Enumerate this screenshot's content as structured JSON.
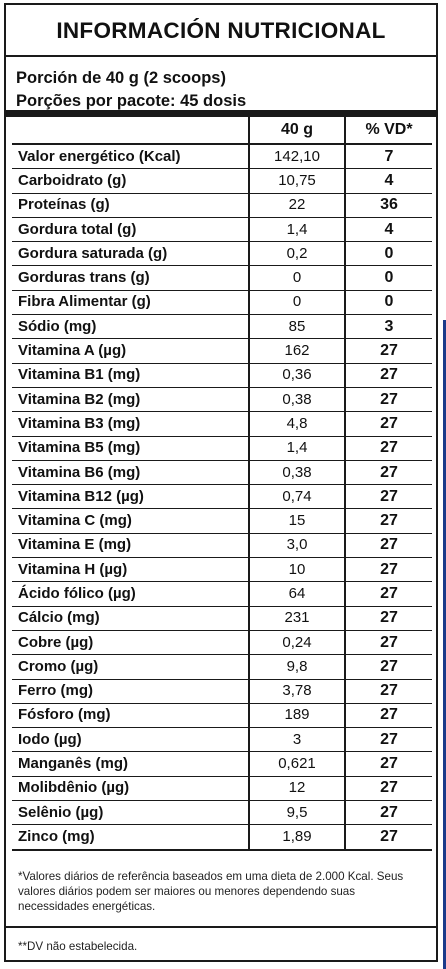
{
  "title": "INFORMACIÓN NUTRICIONAL",
  "portion": {
    "line1": "Porción de 40 g (2 scoops)",
    "line2": "Porções por pacote: 45 dosis"
  },
  "table": {
    "col_qty": "40 g",
    "col_vd": "% VD*",
    "rows": [
      {
        "name": "Valor energético (Kcal)",
        "qty": "142,10",
        "vd": "7"
      },
      {
        "name": "Carboidrato (g)",
        "qty": "10,75",
        "vd": "4"
      },
      {
        "name": "Proteínas (g)",
        "qty": "22",
        "vd": "36"
      },
      {
        "name": "Gordura total (g)",
        "qty": "1,4",
        "vd": "4"
      },
      {
        "name": "Gordura saturada (g)",
        "qty": "0,2",
        "vd": "0"
      },
      {
        "name": "Gorduras trans (g)",
        "qty": "0",
        "vd": "0"
      },
      {
        "name": "Fibra Alimentar (g)",
        "qty": "0",
        "vd": "0"
      },
      {
        "name": "Sódio (mg)",
        "qty": "85",
        "vd": "3"
      },
      {
        "name": "Vitamina A (µg)",
        "qty": "162",
        "vd": "27"
      },
      {
        "name": "Vitamina B1 (mg)",
        "qty": "0,36",
        "vd": "27"
      },
      {
        "name": "Vitamina B2 (mg)",
        "qty": "0,38",
        "vd": "27"
      },
      {
        "name": "Vitamina B3 (mg)",
        "qty": "4,8",
        "vd": "27"
      },
      {
        "name": "Vitamina B5 (mg)",
        "qty": "1,4",
        "vd": "27"
      },
      {
        "name": "Vitamina B6 (mg)",
        "qty": "0,38",
        "vd": "27"
      },
      {
        "name": "Vitamina B12 (µg)",
        "qty": "0,74",
        "vd": "27"
      },
      {
        "name": "Vitamina C (mg)",
        "qty": "15",
        "vd": "27"
      },
      {
        "name": "Vitamina E (mg)",
        "qty": "3,0",
        "vd": "27"
      },
      {
        "name": "Vitamina H (µg)",
        "qty": "10",
        "vd": "27"
      },
      {
        "name": "Ácido fólico (µg)",
        "qty": "64",
        "vd": "27"
      },
      {
        "name": "Cálcio (mg)",
        "qty": "231",
        "vd": "27"
      },
      {
        "name": "Cobre (µg)",
        "qty": "0,24",
        "vd": "27"
      },
      {
        "name": "Cromo (µg)",
        "qty": "9,8",
        "vd": "27"
      },
      {
        "name": "Ferro (mg)",
        "qty": "3,78",
        "vd": "27"
      },
      {
        "name": "Fósforo (mg)",
        "qty": "189",
        "vd": "27"
      },
      {
        "name": "Iodo (µg)",
        "qty": "3",
        "vd": "27"
      },
      {
        "name": "Manganês (mg)",
        "qty": "0,621",
        "vd": "27"
      },
      {
        "name": "Molibdênio (µg)",
        "qty": "12",
        "vd": "27"
      },
      {
        "name": "Selênio (µg)",
        "qty": "9,5",
        "vd": "27"
      },
      {
        "name": "Zinco (mg)",
        "qty": "1,89",
        "vd": "27"
      }
    ]
  },
  "footnote1": "*Valores diários de referência baseados em uma dieta de 2.000 Kcal. Seus valores diários podem ser maiores ou menores dependendo suas necessidades energéticas.",
  "footnote2": "**DV não estabelecida.",
  "colors": {
    "border": "#1a1a1a",
    "frame_accent": "#1b3a8a"
  }
}
